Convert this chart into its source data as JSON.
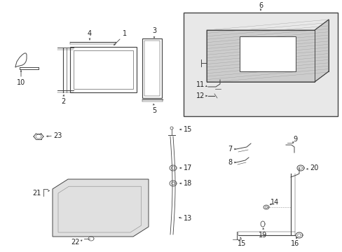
{
  "background": "#ffffff",
  "fig_w": 4.89,
  "fig_h": 3.6,
  "dpi": 100
}
